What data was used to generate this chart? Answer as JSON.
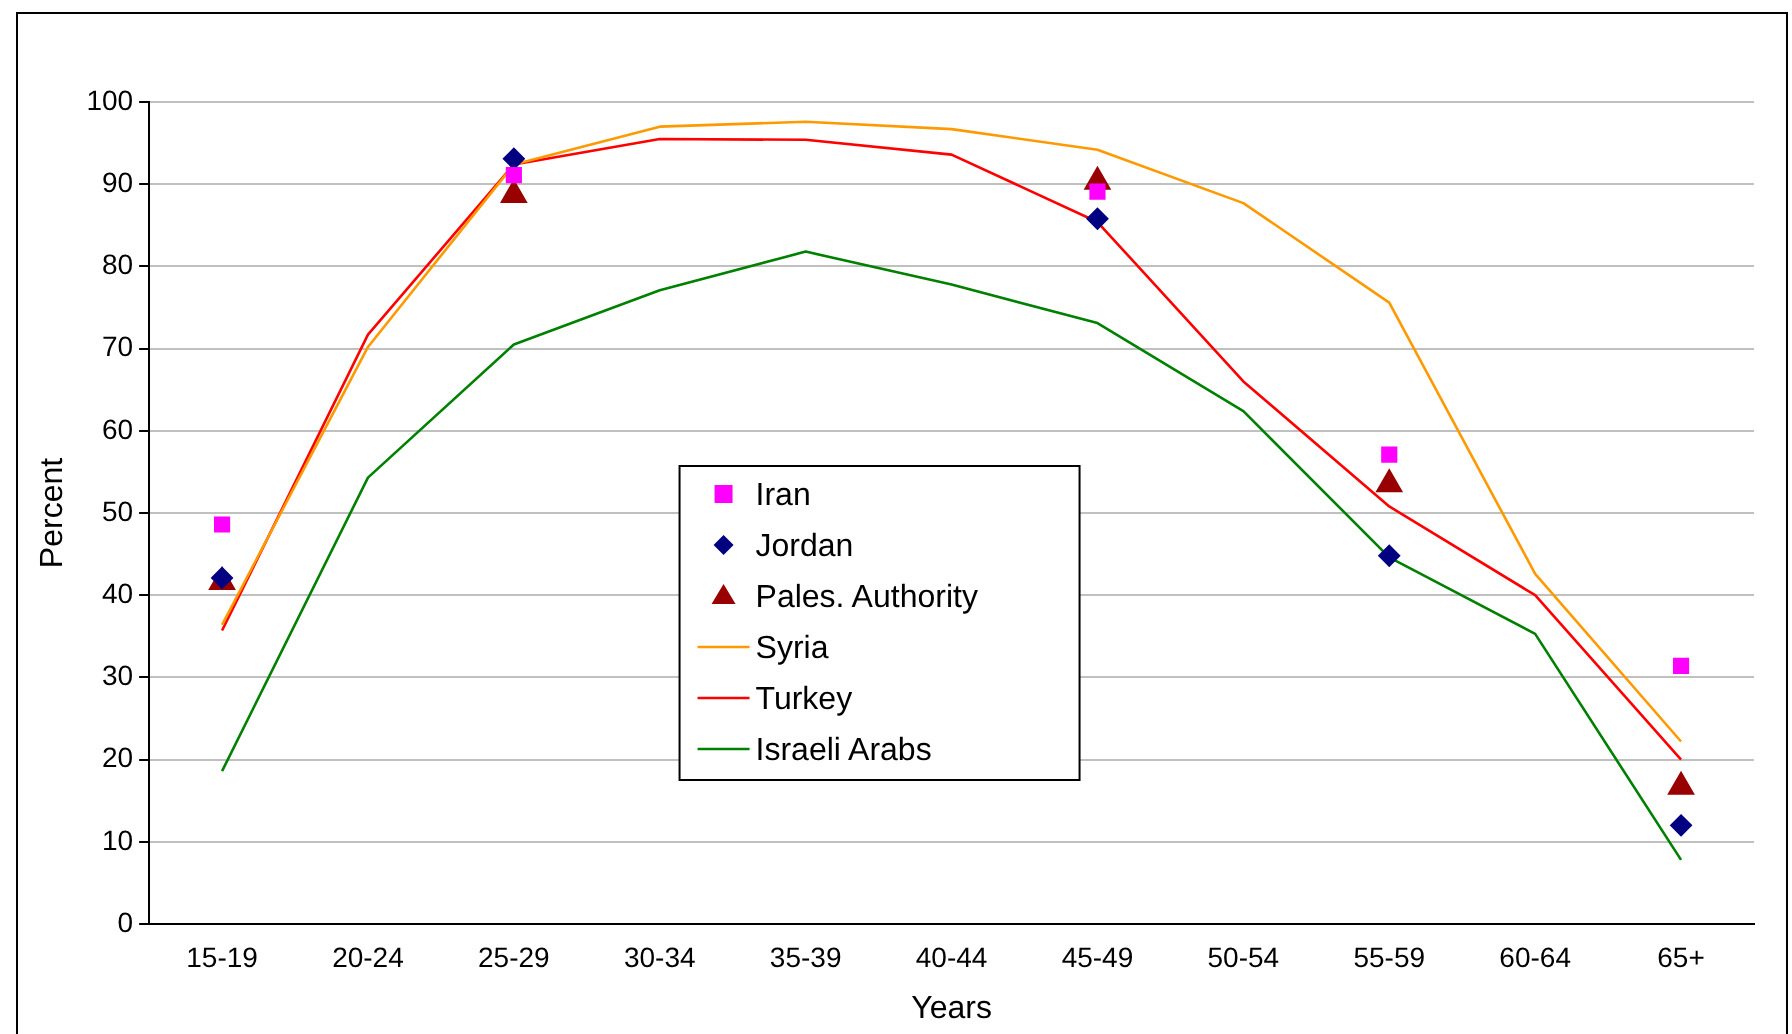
{
  "chart_data": {
    "type": "line",
    "xlabel": "Years",
    "ylabel": "Percent",
    "categories": [
      "15-19",
      "20-24",
      "25-29",
      "30-34",
      "35-39",
      "40-44",
      "45-49",
      "50-54",
      "55-59",
      "60-64",
      "65+"
    ],
    "ylim": [
      0,
      100
    ],
    "yticks": [
      0,
      10,
      20,
      30,
      40,
      50,
      60,
      70,
      80,
      90,
      100
    ],
    "grid": "y",
    "legend": "center",
    "series": [
      {
        "name": "Iran",
        "type": "scatter",
        "marker": "square",
        "color": "#ff00ff",
        "values": [
          48.6,
          null,
          91.1,
          null,
          null,
          null,
          89.1,
          null,
          57.1,
          null,
          31.4
        ]
      },
      {
        "name": "Jordan",
        "type": "scatter",
        "marker": "diamond",
        "color": "#000080",
        "values": [
          42.1,
          null,
          93.1,
          null,
          null,
          null,
          85.8,
          null,
          44.8,
          null,
          12.0
        ]
      },
      {
        "name": "Pales. Authority",
        "type": "scatter",
        "marker": "triangle",
        "color": "#990000",
        "values": [
          41.6,
          null,
          88.7,
          null,
          null,
          null,
          90.3,
          null,
          53.5,
          null,
          16.7
        ]
      },
      {
        "name": "Syria",
        "type": "line",
        "color": "#ff9900",
        "values": [
          36.4,
          70.2,
          92.4,
          97.0,
          97.6,
          96.7,
          94.2,
          87.7,
          75.6,
          42.6,
          22.2
        ]
      },
      {
        "name": "Turkey",
        "type": "line",
        "color": "#ff0000",
        "values": [
          35.7,
          71.7,
          92.4,
          95.5,
          95.4,
          93.6,
          85.4,
          66.0,
          50.8,
          40.0,
          20.0
        ]
      },
      {
        "name": "Israeli Arabs",
        "type": "line",
        "color": "#008000",
        "values": [
          18.6,
          54.3,
          70.5,
          77.1,
          81.8,
          77.8,
          73.1,
          62.4,
          44.6,
          35.3,
          7.8
        ]
      }
    ]
  }
}
